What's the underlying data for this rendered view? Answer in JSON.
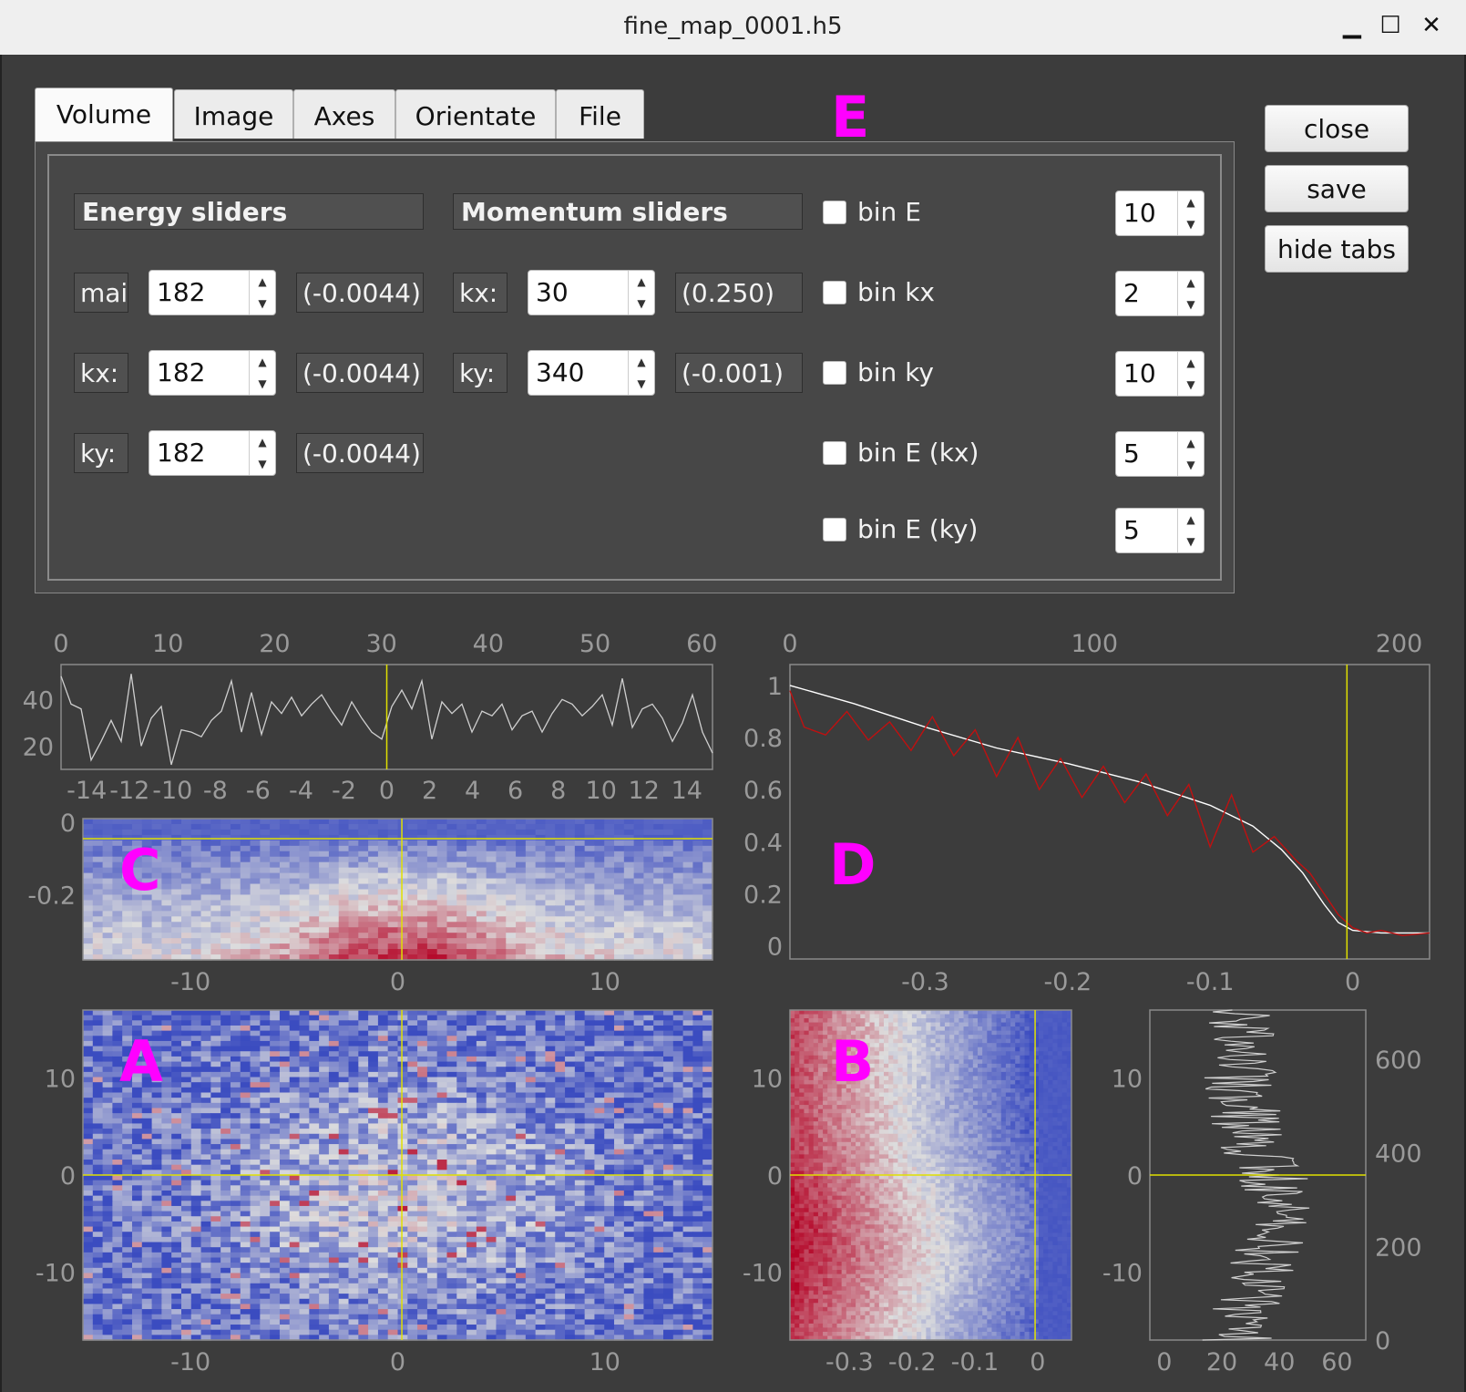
{
  "window": {
    "title": "fine_map_0001.h5",
    "minimize_icon": "minimize-icon",
    "maximize_icon": "maximize-icon",
    "close_icon": "close-icon"
  },
  "tabs": [
    {
      "label": "Volume",
      "active": true
    },
    {
      "label": "Image"
    },
    {
      "label": "Axes"
    },
    {
      "label": "Orientate"
    },
    {
      "label": "File"
    }
  ],
  "buttons": {
    "close": "close",
    "save": "save",
    "hide_tabs": "hide tabs"
  },
  "energy": {
    "header": "Energy sliders",
    "rows": [
      {
        "label": "mai",
        "value": "182",
        "readout": "(-0.0044)"
      },
      {
        "label": "kx:",
        "value": "182",
        "readout": "(-0.0044)"
      },
      {
        "label": "ky:",
        "value": "182",
        "readout": "(-0.0044)"
      }
    ]
  },
  "momentum": {
    "header": "Momentum sliders",
    "rows": [
      {
        "label": "kx:",
        "value": "30",
        "readout": "(0.250)"
      },
      {
        "label": "ky:",
        "value": "340",
        "readout": "(-0.001)"
      }
    ]
  },
  "binning": [
    {
      "label": "bin E",
      "checked": false,
      "value": "10"
    },
    {
      "label": "bin kx",
      "checked": false,
      "value": "2"
    },
    {
      "label": "bin ky",
      "checked": false,
      "value": "10"
    },
    {
      "label": "bin E (kx)",
      "checked": false,
      "value": "5"
    },
    {
      "label": "bin E (ky)",
      "checked": false,
      "value": "5"
    }
  ],
  "panel_labels": {
    "A": "A",
    "B": "B",
    "C": "C",
    "D": "D",
    "E": "E"
  },
  "colors": {
    "background": "#3c3c3c",
    "panel": "#474747",
    "cursor": "#e0e000",
    "accent": "#ff00ff",
    "profile": "#ffffff",
    "fit": "#c01010",
    "map_low": "#3b4cc0",
    "map_mid": "#dddddd",
    "map_high": "#b40426"
  },
  "chart_data": [
    {
      "id": "C-profile",
      "type": "line",
      "x_top_ticks": [
        "0",
        "10",
        "20",
        "30",
        "40",
        "50",
        "60"
      ],
      "x_bottom_ticks": [
        "-14",
        "-12",
        "-10",
        "-8",
        "-6",
        "-4",
        "-2",
        "0",
        "2",
        "4",
        "6",
        "8",
        "10",
        "12",
        "14"
      ],
      "y_ticks": [
        "40",
        "20"
      ],
      "xlim": [
        0,
        61
      ],
      "ylim": [
        10,
        55
      ],
      "cursor_x": 30.5,
      "values": [
        50,
        38,
        36,
        14,
        22,
        31,
        22,
        51,
        20,
        32,
        37,
        12,
        27,
        26,
        24,
        31,
        35,
        48,
        26,
        43,
        25,
        39,
        34,
        41,
        33,
        38,
        42,
        35,
        29,
        39,
        32,
        26,
        23,
        37,
        44,
        36,
        48,
        23,
        39,
        34,
        38,
        26,
        35,
        33,
        38,
        27,
        33,
        35,
        26,
        34,
        40,
        38,
        33,
        37,
        42,
        29,
        49,
        28,
        36,
        38,
        32,
        22,
        30,
        42,
        26,
        17
      ]
    },
    {
      "id": "C-map",
      "type": "heatmap",
      "x_ticks": [
        "-10",
        "0",
        "10"
      ],
      "xlim": [
        -15.2,
        15.2
      ],
      "y_ticks": [
        "0",
        "-0.2"
      ],
      "ylim": [
        -0.38,
        0.01
      ],
      "cursor_x": 0.2,
      "cursor_y": 0.0
    },
    {
      "id": "D",
      "type": "line",
      "x_top_ticks": [
        "0",
        "100",
        "200"
      ],
      "xtop_lim": [
        0,
        210
      ],
      "x_bottom_ticks": [
        "-0.3",
        "-0.2",
        "-0.1",
        "0"
      ],
      "xlim": [
        -0.395,
        0.054
      ],
      "y_ticks": [
        "1",
        "0.8",
        "0.6",
        "0.4",
        "0.2",
        "0"
      ],
      "ylim": [
        -0.05,
        1.08
      ],
      "cursor_x": -0.004,
      "series": [
        {
          "x": [
            -0.395,
            -0.35,
            -0.3,
            -0.25,
            -0.2,
            -0.15,
            -0.1,
            -0.07,
            -0.05,
            -0.035,
            -0.02,
            -0.01,
            0.0,
            0.02,
            0.054
          ],
          "y": [
            1.0,
            0.93,
            0.84,
            0.76,
            0.7,
            0.63,
            0.54,
            0.46,
            0.37,
            0.28,
            0.16,
            0.09,
            0.06,
            0.05,
            0.05
          ]
        },
        {
          "x": [
            -0.395,
            -0.385,
            -0.37,
            -0.355,
            -0.34,
            -0.325,
            -0.31,
            -0.295,
            -0.28,
            -0.265,
            -0.25,
            -0.235,
            -0.22,
            -0.205,
            -0.19,
            -0.175,
            -0.16,
            -0.145,
            -0.13,
            -0.115,
            -0.1,
            -0.085,
            -0.07,
            -0.055,
            -0.04,
            -0.03,
            -0.02,
            -0.01,
            0.0,
            0.01,
            0.02,
            0.035,
            0.054
          ],
          "y": [
            0.98,
            0.84,
            0.81,
            0.9,
            0.79,
            0.86,
            0.75,
            0.88,
            0.73,
            0.83,
            0.65,
            0.8,
            0.6,
            0.72,
            0.57,
            0.69,
            0.55,
            0.66,
            0.5,
            0.62,
            0.38,
            0.58,
            0.36,
            0.42,
            0.33,
            0.28,
            0.2,
            0.12,
            0.07,
            0.05,
            0.06,
            0.04,
            0.05
          ]
        }
      ]
    },
    {
      "id": "A",
      "type": "heatmap",
      "x_ticks": [
        "-10",
        "0",
        "10"
      ],
      "xlim": [
        -15.2,
        15.2
      ],
      "y_ticks": [
        "10",
        "0",
        "-10"
      ],
      "ylim": [
        -17,
        17
      ],
      "cursor_x": 0.2,
      "cursor_y": 0.0
    },
    {
      "id": "B",
      "type": "heatmap",
      "x_ticks": [
        "-0.3",
        "-0.2",
        "-0.1",
        "0"
      ],
      "xlim": [
        -0.395,
        0.054
      ],
      "y_ticks": [
        "10",
        "0",
        "-10"
      ],
      "ylim": [
        -17,
        17
      ],
      "cursor_x": -0.004,
      "cursor_y": 0.0
    },
    {
      "id": "B-profile",
      "type": "line",
      "x_ticks": [
        "0",
        "20",
        "40",
        "60"
      ],
      "xlim": [
        -5,
        70
      ],
      "y_ticks": [
        "10",
        "0",
        "-10"
      ],
      "ylim": [
        -17,
        17
      ],
      "y_right_ticks": [
        "600",
        "400",
        "200",
        "0"
      ],
      "y_right_lim": [
        0,
        705
      ],
      "cursor_y": 0.0
    }
  ]
}
